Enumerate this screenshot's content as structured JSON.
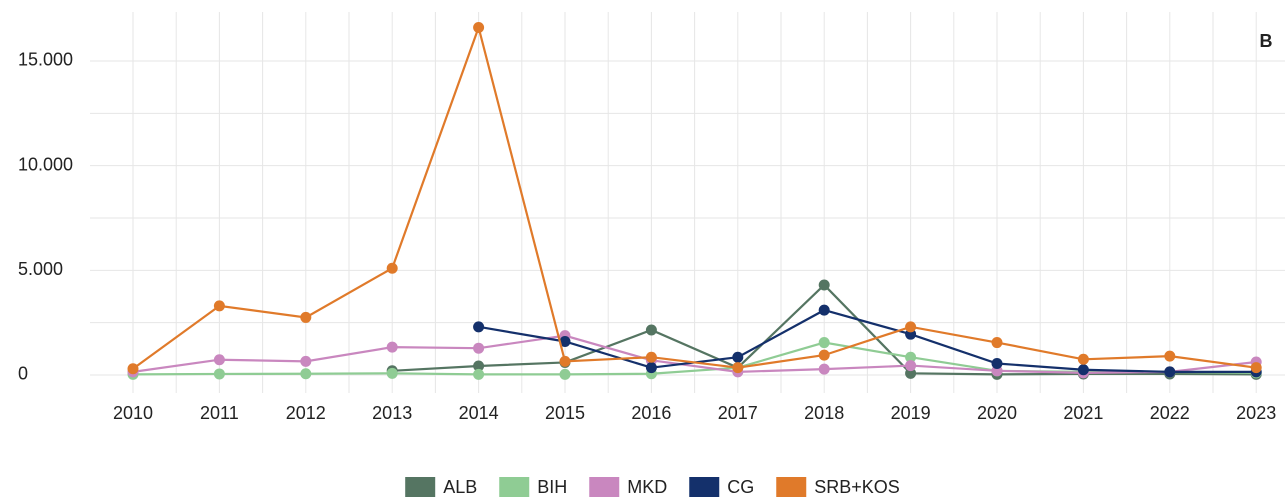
{
  "chart_data": {
    "type": "line",
    "annotation": "B",
    "categories": [
      "2010",
      "2011",
      "2012",
      "2013",
      "2014",
      "2015",
      "2016",
      "2017",
      "2018",
      "2019",
      "2020",
      "2021",
      "2022",
      "2023"
    ],
    "series": [
      {
        "name": "ALB",
        "color": "#557562",
        "values": [
          null,
          null,
          null,
          200,
          430,
          600,
          2150,
          350,
          4300,
          80,
          30,
          50,
          50,
          30
        ]
      },
      {
        "name": "BIH",
        "color": "#8fcc94",
        "values": [
          30,
          50,
          60,
          80,
          30,
          30,
          60,
          350,
          1550,
          850,
          200,
          150,
          150,
          100
        ]
      },
      {
        "name": "MKD",
        "color": "#c987bf",
        "values": [
          150,
          730,
          650,
          1330,
          1280,
          1880,
          700,
          150,
          280,
          450,
          200,
          100,
          150,
          620
        ]
      },
      {
        "name": "CG",
        "color": "#14306b",
        "values": [
          null,
          null,
          null,
          null,
          2300,
          1600,
          350,
          850,
          3100,
          1950,
          550,
          250,
          150,
          150
        ]
      },
      {
        "name": "SRB+KOS",
        "color": "#e07a2a",
        "values": [
          300,
          3300,
          2750,
          5100,
          16600,
          650,
          850,
          350,
          950,
          2300,
          1550,
          750,
          900,
          350
        ]
      }
    ],
    "ylim": [
      -860,
      17340
    ],
    "yticks": [
      0,
      {
        "value": 5000,
        "label": "5.000"
      },
      {
        "value": 10000,
        "label": "10.000"
      },
      {
        "value": 15000,
        "label": "15.000"
      }
    ],
    "y_minor_ticks": [
      2500,
      7500,
      12500
    ],
    "grid": true
  }
}
